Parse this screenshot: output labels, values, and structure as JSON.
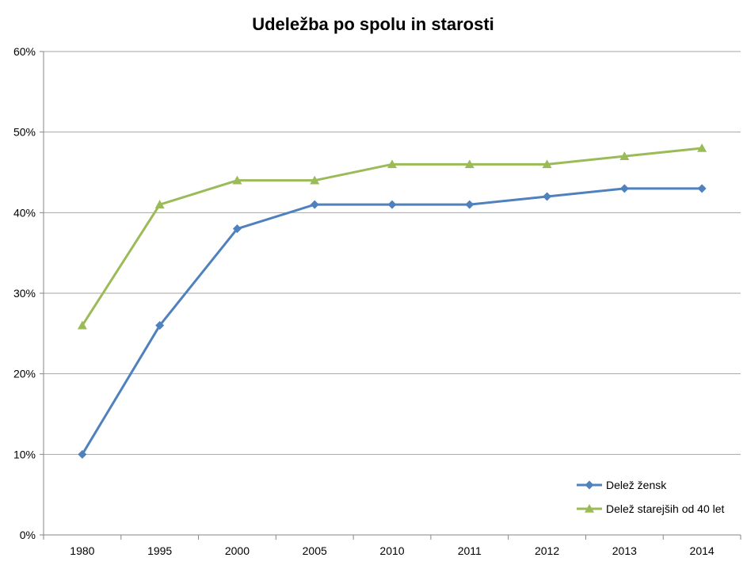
{
  "chart_data": {
    "type": "line",
    "title": "Udeležba po spolu in starosti",
    "xlabel": "",
    "ylabel": "",
    "categories": [
      "1980",
      "1995",
      "2000",
      "2005",
      "2010",
      "2011",
      "2012",
      "2013",
      "2014"
    ],
    "y_ticks": [
      "0%",
      "10%",
      "20%",
      "30%",
      "40%",
      "50%",
      "60%"
    ],
    "ylim": [
      0,
      60
    ],
    "y_unit": "%",
    "grid": "horizontal",
    "legend_position": "bottom-right",
    "series": [
      {
        "name": "Delež žensk",
        "values": [
          10,
          26,
          38,
          41,
          41,
          41,
          42,
          43,
          43
        ],
        "color": "#4F81BD",
        "marker": "diamond"
      },
      {
        "name": "Delež starejših od 40 let",
        "values": [
          26,
          41,
          44,
          44,
          46,
          46,
          46,
          47,
          48
        ],
        "color": "#9BBB59",
        "marker": "triangle"
      }
    ]
  },
  "colors": {
    "gridline": "#A6A6A6",
    "axis": "#868686"
  }
}
